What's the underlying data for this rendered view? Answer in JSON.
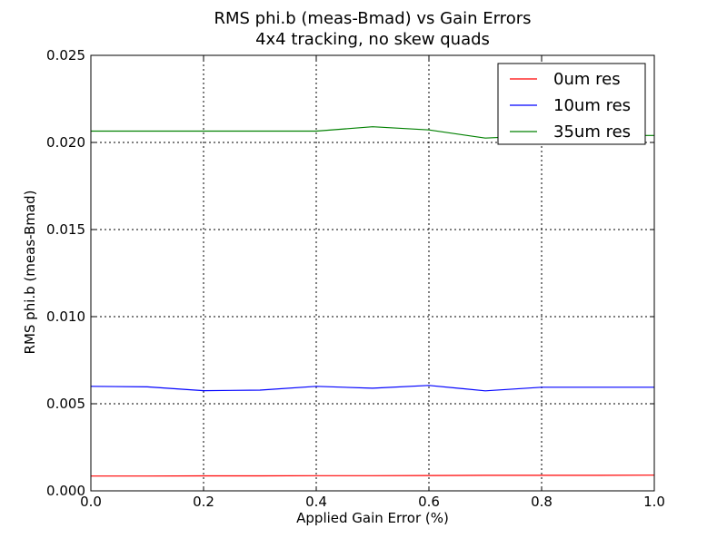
{
  "chart_data": {
    "type": "line",
    "title": "RMS phi.b (meas-Bmad) vs Gain Errors",
    "subtitle": "4x4 tracking, no skew quads",
    "xlabel": "Applied Gain Error (%)",
    "ylabel": "RMS phi.b (meas-Bmad)",
    "xlim": [
      0.0,
      1.0
    ],
    "ylim": [
      0.0,
      0.025
    ],
    "xticks": [
      "0.0",
      "0.2",
      "0.4",
      "0.6",
      "0.8",
      "1.0"
    ],
    "yticks": [
      "0.000",
      "0.005",
      "0.010",
      "0.015",
      "0.020",
      "0.025"
    ],
    "grid": true,
    "legend_position": "top-right",
    "x": [
      0.0,
      0.1,
      0.2,
      0.3,
      0.4,
      0.5,
      0.6,
      0.7,
      0.8,
      0.9,
      1.0
    ],
    "series": [
      {
        "name": "0um res",
        "color": "#ff0000",
        "values": [
          0.00085,
          0.00085,
          0.00086,
          0.00086,
          0.00087,
          0.00087,
          0.00088,
          0.00089,
          0.00089,
          0.00089,
          0.0009
        ]
      },
      {
        "name": "10um res",
        "color": "#0000ff",
        "values": [
          0.006,
          0.00597,
          0.00575,
          0.00578,
          0.006,
          0.00589,
          0.00605,
          0.00574,
          0.00595,
          0.00595,
          0.00595
        ]
      },
      {
        "name": "35um res",
        "color": "#008000",
        "values": [
          0.02065,
          0.02065,
          0.02065,
          0.02065,
          0.02065,
          0.0209,
          0.02072,
          0.02025,
          0.0204,
          0.0204,
          0.0204
        ]
      }
    ]
  }
}
